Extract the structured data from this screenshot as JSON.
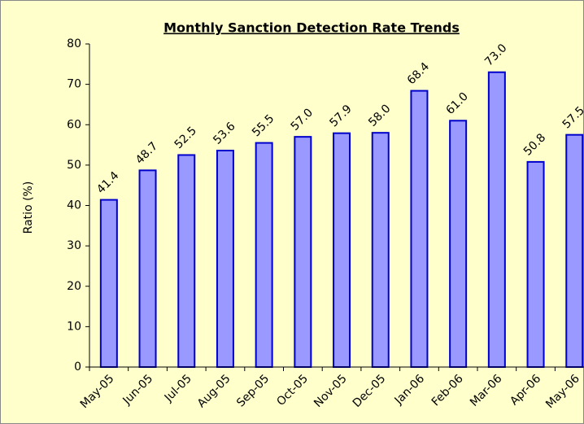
{
  "chart_data": {
    "type": "bar",
    "title": "Monthly Sanction Detection Rate Trends",
    "y_label": "Ratio (%)",
    "categories": [
      "May-05",
      "Jun-05",
      "Jul-05",
      "Aug-05",
      "Sep-05",
      "Oct-05",
      "Nov-05",
      "Dec-05",
      "Jan-06",
      "Feb-06",
      "Mar-06",
      "Apr-06",
      "May-06"
    ],
    "values": [
      41.4,
      48.7,
      52.5,
      53.6,
      55.5,
      57.0,
      57.9,
      58.0,
      68.4,
      61.0,
      73.0,
      50.8,
      57.5
    ],
    "value_labels": [
      "41.4",
      "48.7",
      "52.5",
      "53.6",
      "55.5",
      "57.0",
      "57.9",
      "58.0",
      "68.4",
      "61.0",
      "73.0",
      "50.8",
      "57.5"
    ],
    "color": "#9999ff",
    "edge_color": "#0000cc",
    "ylim": [
      0,
      80
    ],
    "yticks": [
      0,
      10,
      20,
      30,
      40,
      50,
      60,
      70,
      80
    ],
    "grid": false
  }
}
